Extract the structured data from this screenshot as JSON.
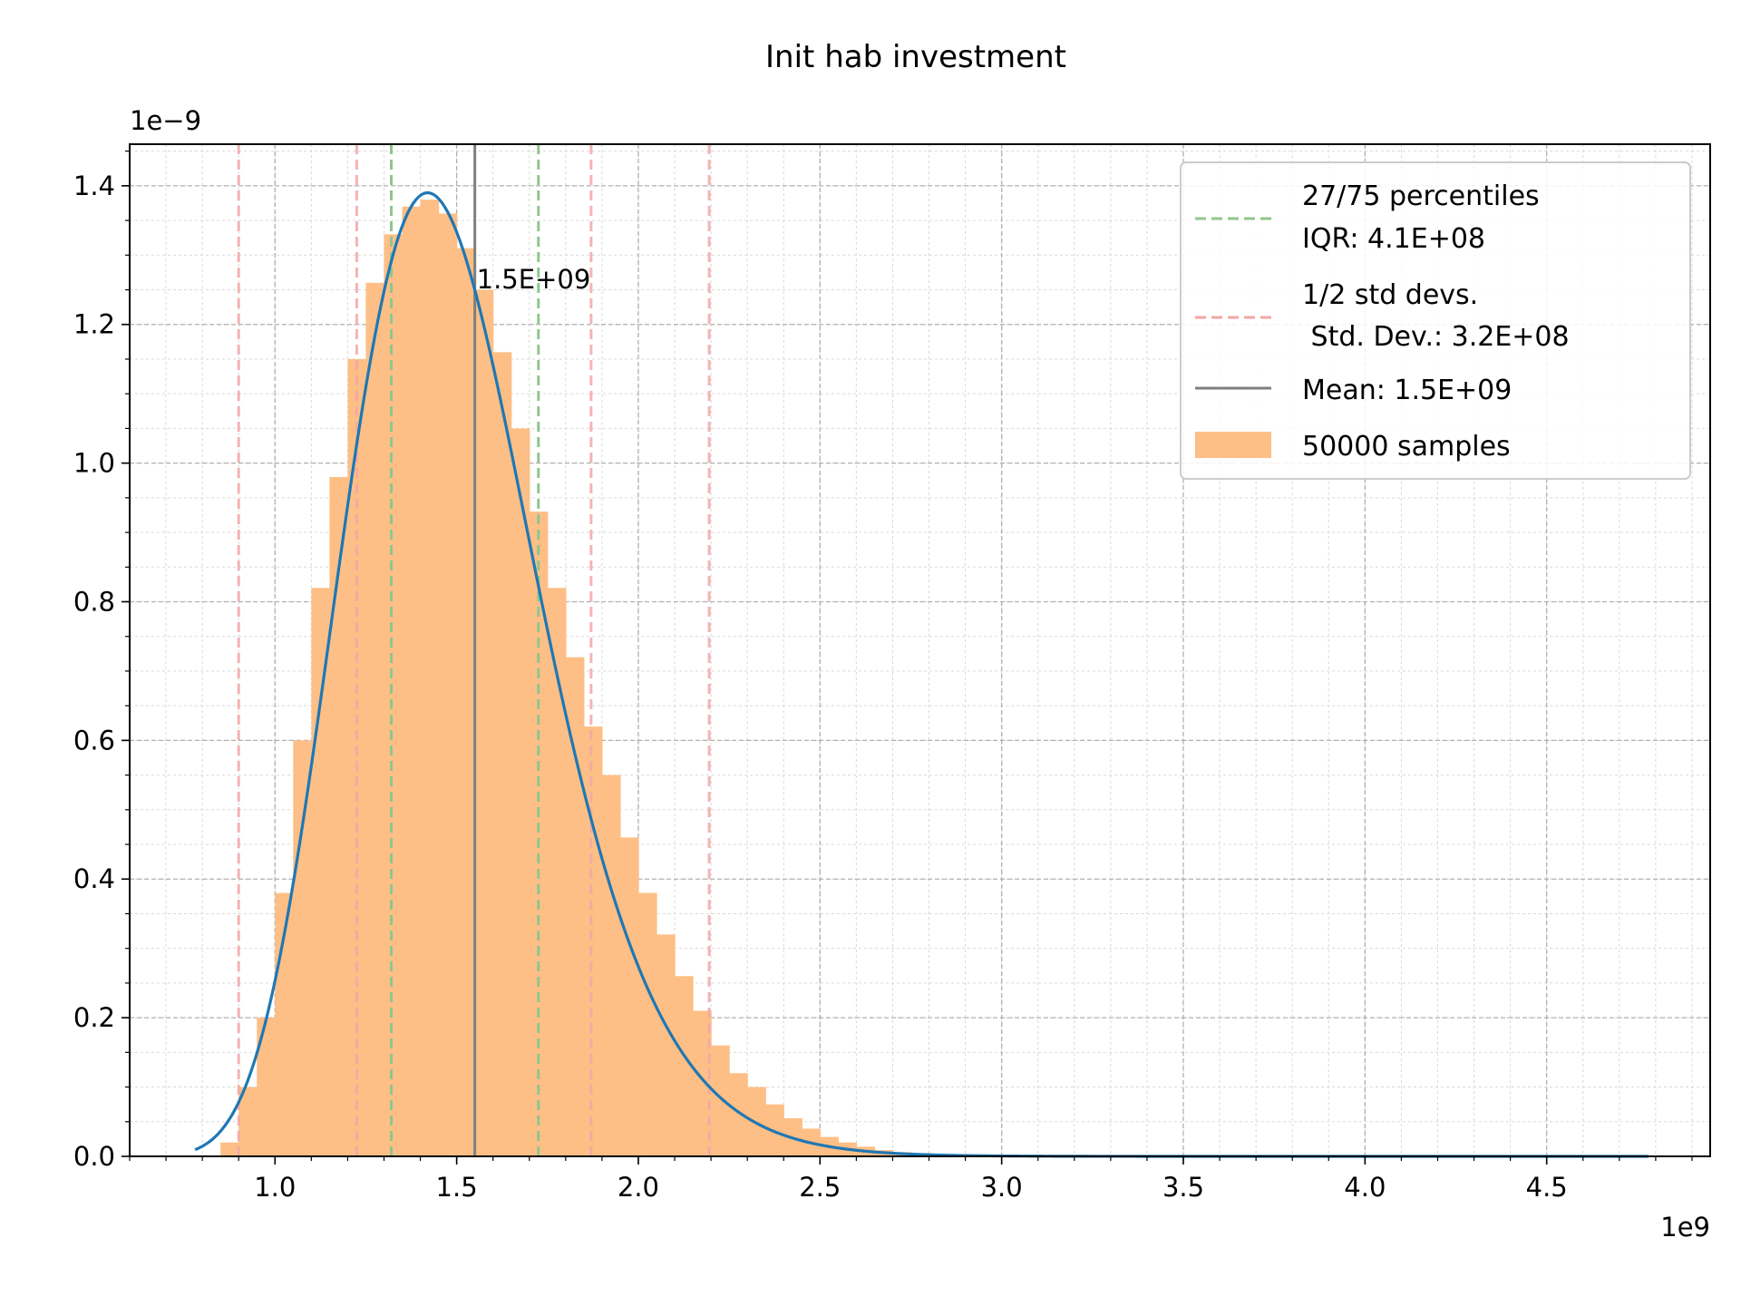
{
  "chart_data": {
    "type": "bar",
    "title": "Init hab investment",
    "xlabel": "",
    "ylabel": "",
    "x_exponent_label": "1e9",
    "y_exponent_label": "1e−9",
    "xlim": [
      0.6,
      4.95
    ],
    "ylim": [
      0.0,
      1.46
    ],
    "x_ticks": [
      1.0,
      1.5,
      2.0,
      2.5,
      3.0,
      3.5,
      4.0,
      4.5
    ],
    "x_tick_labels": [
      "1.0",
      "1.5",
      "2.0",
      "2.5",
      "3.0",
      "3.5",
      "4.0",
      "4.5"
    ],
    "y_ticks": [
      0.0,
      0.2,
      0.4,
      0.6,
      0.8,
      1.0,
      1.2,
      1.4
    ],
    "y_tick_labels": [
      "0.0",
      "0.2",
      "0.4",
      "0.6",
      "0.8",
      "1.0",
      "1.2",
      "1.4"
    ],
    "grid": true,
    "minor_grid": true,
    "legend_position": "top-right",
    "histogram": {
      "bin_start": 0.85,
      "bin_width": 0.05,
      "values": [
        0.02,
        0.1,
        0.2,
        0.38,
        0.6,
        0.82,
        0.98,
        1.15,
        1.26,
        1.33,
        1.37,
        1.38,
        1.36,
        1.31,
        1.25,
        1.16,
        1.05,
        0.93,
        0.82,
        0.72,
        0.62,
        0.55,
        0.46,
        0.38,
        0.32,
        0.26,
        0.21,
        0.16,
        0.12,
        0.1,
        0.075,
        0.055,
        0.04,
        0.028,
        0.02,
        0.014,
        0.009,
        0.006,
        0.004,
        0.003,
        0.002,
        0.0015,
        0.001,
        0.0008,
        0.0006,
        0.0005,
        0.0004,
        0.0003
      ],
      "color": "#fdbf86"
    },
    "pdf_curve": {
      "x_start": 0.78,
      "x_end": 4.78,
      "peak_x": 1.42,
      "peak_y": 1.39,
      "color": "#1f77b4"
    },
    "mean_line": {
      "x": 1.55,
      "color": "#7f7f7f"
    },
    "percentile_lines": {
      "x": [
        1.32,
        1.725
      ],
      "color": "#8fc68f"
    },
    "std_lines": {
      "x": [
        0.9,
        1.225,
        1.87,
        2.195
      ],
      "color": "#f4a6a6"
    },
    "annotation": {
      "text": "1.5E+09",
      "x": 1.55,
      "y": 1.265
    },
    "legend": [
      {
        "label": "27/75 percentiles",
        "sublabel": "IQR: 4.1E+08",
        "style": "dashed",
        "color": "#8fc68f"
      },
      {
        "label": "1/2 std devs.",
        "sublabel": " Std. Dev.: 3.2E+08",
        "style": "dashed",
        "color": "#f4a6a6"
      },
      {
        "label": "Mean: 1.5E+09",
        "sublabel": "",
        "style": "solid",
        "color": "#7f7f7f"
      },
      {
        "label": "50000 samples",
        "sublabel": "",
        "style": "patch",
        "color": "#fdbf86"
      }
    ]
  }
}
